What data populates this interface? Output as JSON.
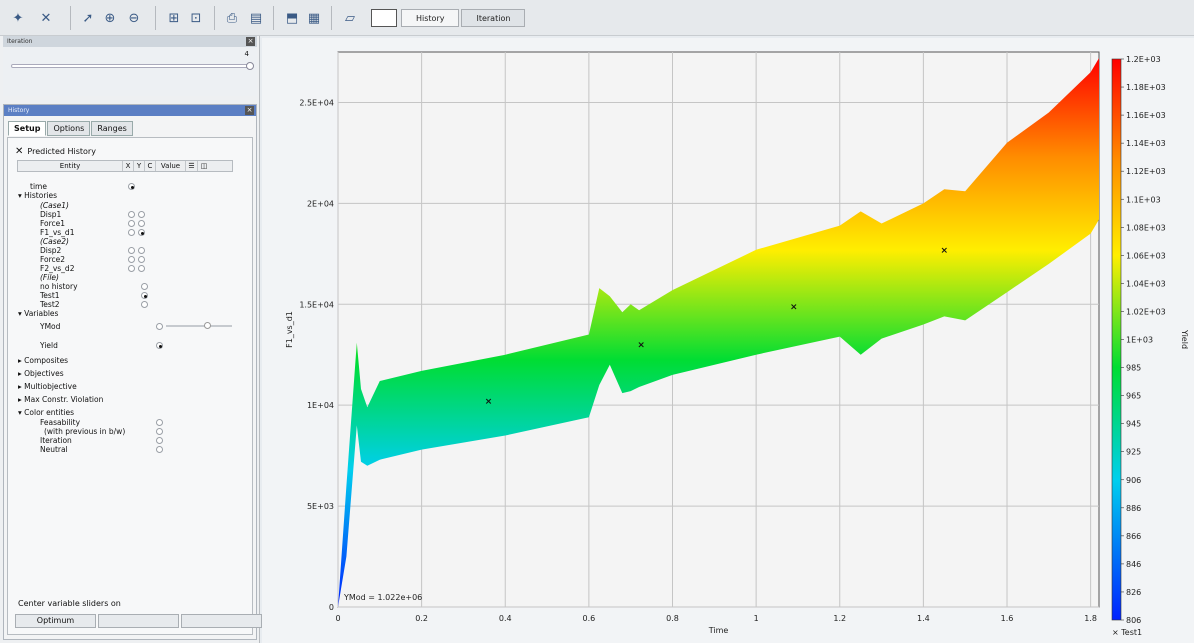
{
  "toolbar": {
    "icons": [
      "add-icon",
      "delete-icon",
      "pointer-icon",
      "zoom-in-icon",
      "zoom-out-icon",
      "fit-icon",
      "layout-icon",
      "print-icon",
      "open-icon",
      "export-icon",
      "grid-icon",
      "folder-icon"
    ],
    "tabs": [
      "History",
      "Iteration"
    ]
  },
  "iteration": {
    "title": "Iteration",
    "value": "4"
  },
  "history": {
    "title": "History",
    "tabs": [
      "Setup",
      "Options",
      "Ranges"
    ],
    "predicted_label": "Predicted History",
    "headers": [
      "Entity",
      "X",
      "Y",
      "C",
      "Value"
    ],
    "rows": [
      {
        "label": "time"
      },
      {
        "label": "Histories"
      },
      {
        "label": "(Case1)"
      },
      {
        "label": "Disp1"
      },
      {
        "label": "Force1"
      },
      {
        "label": "F1_vs_d1"
      },
      {
        "label": "(Case2)"
      },
      {
        "label": "Disp2"
      },
      {
        "label": "Force2"
      },
      {
        "label": "F2_vs_d2"
      },
      {
        "label": "(File)"
      },
      {
        "label": "no history"
      },
      {
        "label": "Test1"
      },
      {
        "label": "Test2"
      },
      {
        "label": "Variables"
      },
      {
        "label": "YMod"
      },
      {
        "label": "Yield"
      },
      {
        "label": "Composites"
      },
      {
        "label": "Objectives"
      },
      {
        "label": "Multiobjective"
      },
      {
        "label": "Max Constr. Violation"
      },
      {
        "label": "Color entities"
      },
      {
        "label": "Feasability"
      },
      {
        "label": "(with previous in b/w)"
      },
      {
        "label": "Iteration"
      },
      {
        "label": "Neutral"
      }
    ],
    "center_label": "Center variable sliders on",
    "optimum_button": "Optimum"
  },
  "chart_data": {
    "type": "area",
    "xlabel": "Time",
    "ylabel": "F1_vs_d1",
    "xlim": [
      0,
      1.82
    ],
    "ylim": [
      0,
      27500
    ],
    "x_ticks": [
      "0",
      "0.2",
      "0.4",
      "0.6",
      "0.8",
      "1",
      "1.2",
      "1.4",
      "1.6",
      "1.8"
    ],
    "y_ticks": [
      "0",
      "5E+03",
      "1E+04",
      "1.5E+04",
      "2E+04",
      "2.5E+04"
    ],
    "upper": {
      "x": [
        0,
        0.02,
        0.045,
        0.055,
        0.07,
        0.1,
        0.2,
        0.4,
        0.6,
        0.625,
        0.65,
        0.68,
        0.7,
        0.72,
        0.8,
        1.0,
        1.2,
        1.25,
        1.3,
        1.4,
        1.45,
        1.5,
        1.6,
        1.7,
        1.8,
        1.82
      ],
      "y": [
        0,
        6000,
        13100,
        10800,
        9900,
        11200,
        11700,
        12500,
        13500,
        15800,
        15400,
        14600,
        15000,
        14700,
        15700,
        17700,
        18900,
        19600,
        19000,
        20000,
        20700,
        20600,
        23000,
        24500,
        26500,
        27200
      ]
    },
    "lower": {
      "x": [
        0,
        0.02,
        0.045,
        0.055,
        0.07,
        0.1,
        0.2,
        0.4,
        0.6,
        0.625,
        0.65,
        0.68,
        0.7,
        0.72,
        0.8,
        1.0,
        1.2,
        1.25,
        1.3,
        1.4,
        1.45,
        1.5,
        1.6,
        1.7,
        1.8,
        1.82
      ],
      "y": [
        0,
        2500,
        9000,
        7200,
        7000,
        7300,
        7800,
        8500,
        9400,
        11000,
        12000,
        10600,
        10700,
        10900,
        11500,
        12500,
        13400,
        12500,
        13300,
        14000,
        14400,
        14200,
        15600,
        17000,
        18500,
        19200
      ]
    },
    "markers": [
      {
        "x": 0.36,
        "y": 10200
      },
      {
        "x": 0.725,
        "y": 13000
      },
      {
        "x": 1.09,
        "y": 14900
      },
      {
        "x": 1.45,
        "y": 17700
      }
    ],
    "annotation": "YMod = 1.022e+06",
    "colorbar": {
      "label": "Yield",
      "ticks": [
        "1.2E+03",
        "1.18E+03",
        "1.16E+03",
        "1.14E+03",
        "1.12E+03",
        "1.1E+03",
        "1.08E+03",
        "1.06E+03",
        "1.04E+03",
        "1.02E+03",
        "1E+03",
        "985",
        "965",
        "945",
        "925",
        "906",
        "886",
        "866",
        "846",
        "826",
        "806"
      ]
    },
    "legend": "Test1"
  }
}
